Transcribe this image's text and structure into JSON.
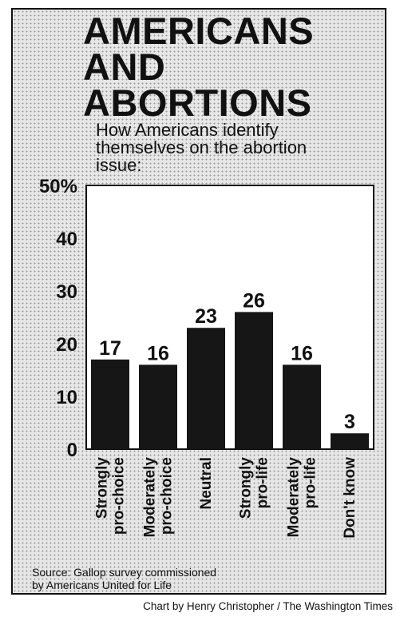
{
  "chart_data": {
    "type": "bar",
    "title": [
      "AMERICANS",
      "AND",
      "ABORTIONS"
    ],
    "subtitle": [
      "How Americans identify",
      "themselves on the abortion",
      "issue:"
    ],
    "categories": [
      [
        "Strongly",
        "pro-choice"
      ],
      [
        "Moderately",
        "pro-choice"
      ],
      [
        "Neutral"
      ],
      [
        "Strongly",
        "pro-life"
      ],
      [
        "Moderately",
        "pro-life"
      ],
      [
        "Don't know"
      ]
    ],
    "values": [
      17,
      16,
      23,
      26,
      16,
      3
    ],
    "value_labels": [
      "17",
      "16",
      "23",
      "26",
      "16",
      "3"
    ],
    "ylim": [
      0,
      50
    ],
    "y_ticks": [
      0,
      10,
      20,
      30,
      40,
      50
    ],
    "y_tick_labels": [
      "0",
      "10",
      "20",
      "30",
      "40",
      "50%"
    ],
    "xlabel": "",
    "ylabel": "",
    "grid": false,
    "colors": {
      "bar": "#161616",
      "plot_background": "#ffffff"
    }
  },
  "source": [
    "Source: Gallop survey commissioned",
    "by Americans United for Life"
  ],
  "credit": "Chart by Henry Christopher / The Washington Times"
}
